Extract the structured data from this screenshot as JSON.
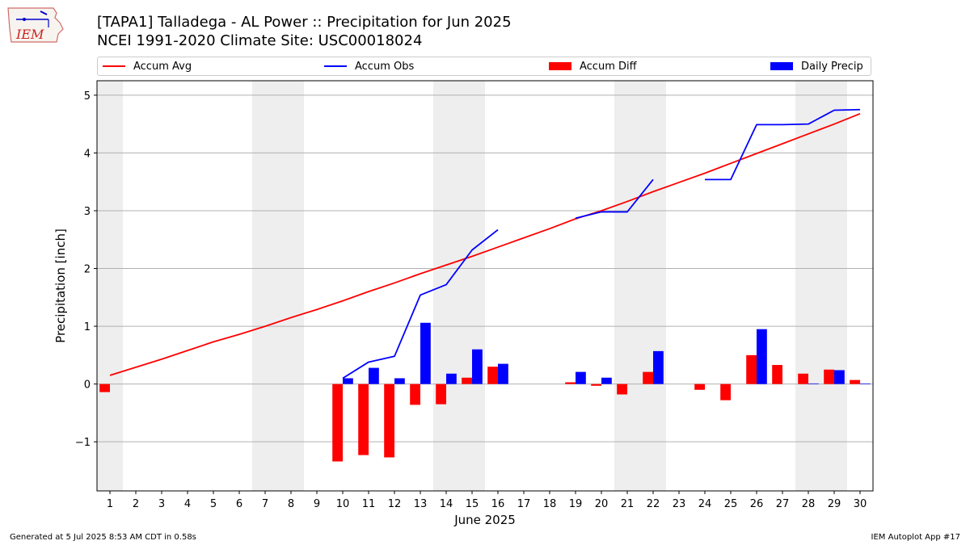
{
  "header": {
    "title_line1": "[TAPA1] Talladega - AL Power :: Precipitation for Jun 2025",
    "title_line2": "NCEI 1991-2020 Climate Site: USC00018024",
    "logo_text": "IEM"
  },
  "legend": {
    "accum_avg": "Accum Avg",
    "accum_obs": "Accum Obs",
    "accum_diff": "Accum Diff",
    "daily_precip": "Daily Precip"
  },
  "footer": {
    "generated": "Generated at 5 Jul 2025 8:53 AM CDT in 0.58s",
    "app": "IEM Autoplot App #17"
  },
  "colors": {
    "avg": "#ff0000",
    "obs": "#0000ff",
    "diff": "#ff0000",
    "daily": "#0000ff",
    "weekend_shade": "#eeeeee",
    "grid": "#b0b0b0"
  },
  "chart_data": {
    "type": "bar",
    "xlabel": "June 2025",
    "ylabel": "Precipitation [inch]",
    "ylim": [
      -1.85,
      5.25
    ],
    "yticks": [
      -1,
      0,
      1,
      2,
      3,
      4,
      5
    ],
    "ytick_labels": [
      "−1",
      "0",
      "1",
      "2",
      "3",
      "4",
      "5"
    ],
    "grid": true,
    "legend_position": "top",
    "days": [
      1,
      2,
      3,
      4,
      5,
      6,
      7,
      8,
      9,
      10,
      11,
      12,
      13,
      14,
      15,
      16,
      17,
      18,
      19,
      20,
      21,
      22,
      23,
      24,
      25,
      26,
      27,
      28,
      29,
      30
    ],
    "weekend_days": [
      1,
      7,
      8,
      14,
      15,
      21,
      22,
      28,
      29
    ],
    "series": [
      {
        "name": "Accum Avg",
        "kind": "line",
        "values": [
          0.15,
          0.29,
          0.43,
          0.58,
          0.73,
          0.86,
          1.0,
          1.15,
          1.29,
          1.44,
          1.6,
          1.75,
          1.91,
          2.06,
          2.21,
          2.37,
          2.53,
          2.69,
          2.86,
          3.0,
          3.16,
          3.33,
          3.49,
          3.65,
          3.82,
          3.99,
          4.16,
          4.33,
          4.5,
          4.68
        ]
      },
      {
        "name": "Accum Obs",
        "kind": "line",
        "values": [
          null,
          null,
          null,
          null,
          null,
          null,
          null,
          null,
          null,
          0.1,
          0.38,
          0.48,
          1.54,
          1.72,
          2.32,
          2.67,
          null,
          null,
          2.87,
          2.98,
          2.98,
          3.54,
          null,
          3.54,
          3.54,
          4.49,
          4.49,
          4.5,
          4.74,
          4.75
        ]
      },
      {
        "name": "Accum Diff",
        "kind": "bar",
        "values": [
          -0.14,
          null,
          null,
          null,
          null,
          null,
          null,
          null,
          null,
          -1.34,
          -1.23,
          -1.27,
          -0.36,
          -0.35,
          0.11,
          0.3,
          null,
          null,
          0.03,
          -0.03,
          -0.18,
          0.21,
          null,
          -0.1,
          -0.28,
          0.5,
          0.33,
          0.18,
          0.25,
          0.07
        ]
      },
      {
        "name": "Daily Precip",
        "kind": "bar",
        "values": [
          0,
          0,
          0,
          0,
          0,
          0,
          0,
          0,
          0,
          0.1,
          0.28,
          0.1,
          1.06,
          0.18,
          0.6,
          0.35,
          0,
          0,
          0.21,
          0.11,
          0,
          0.57,
          0,
          0,
          0,
          0.95,
          0,
          0.01,
          0.24,
          0.01
        ]
      }
    ]
  }
}
